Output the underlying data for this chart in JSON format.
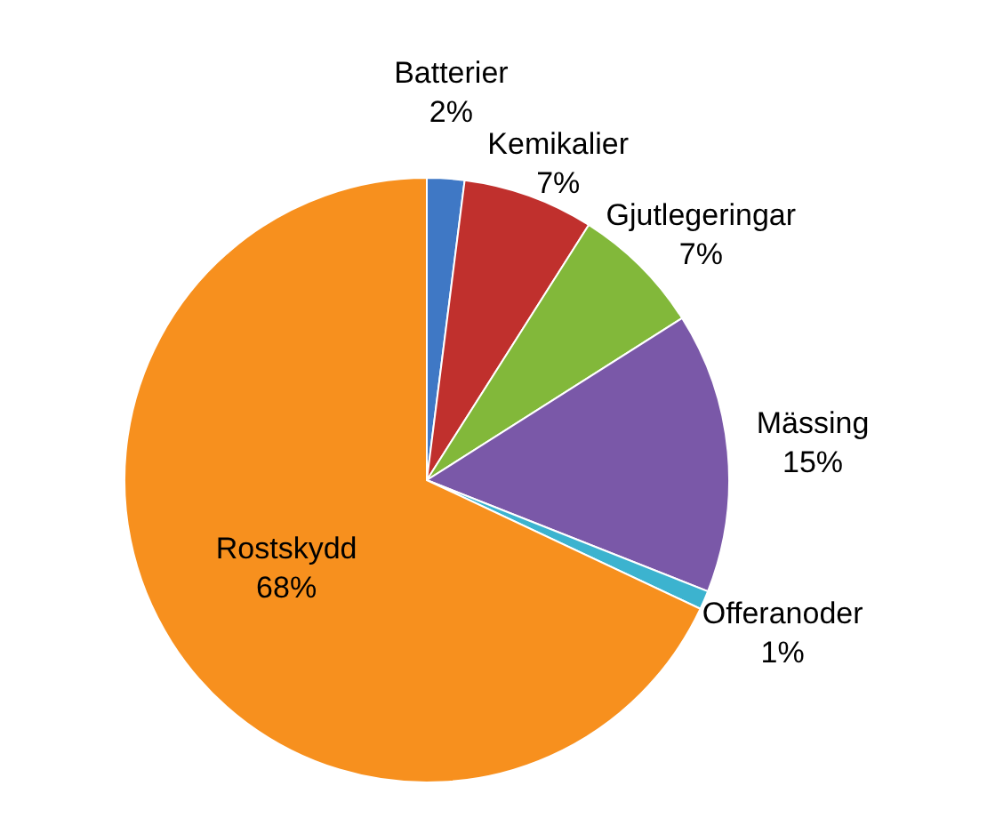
{
  "chart_data": {
    "type": "pie",
    "categories": [
      "Batterier",
      "Kemikalier",
      "Gjutlegeringar",
      "Mässing",
      "Offeranoder",
      "Rostskydd"
    ],
    "values": [
      2,
      7,
      7,
      15,
      1,
      68
    ],
    "value_labels": [
      "2%",
      "7%",
      "7%",
      "15%",
      "1%",
      "68%"
    ],
    "colors": [
      "#3f78c5",
      "#c0302d",
      "#82b83a",
      "#7a58a8",
      "#3cb3cf",
      "#f7901e"
    ]
  }
}
